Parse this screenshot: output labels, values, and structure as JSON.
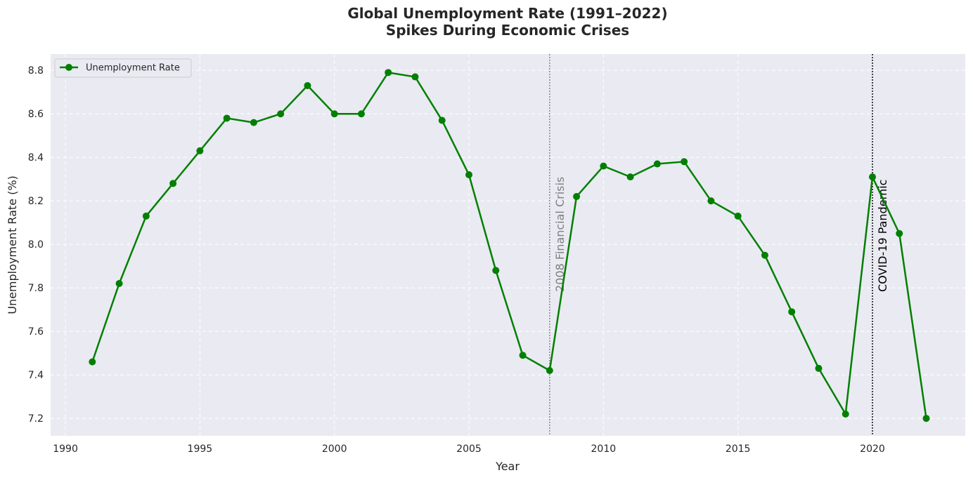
{
  "chart_data": {
    "type": "line",
    "title": "Global Unemployment Rate (1991–2022)",
    "subtitle": "Spikes During Economic Crises",
    "xlabel": "Year",
    "ylabel": "Unemployment Rate (%)",
    "xlim": [
      1989.45,
      1993.45
    ],
    "ylim": [
      7.12,
      8.875
    ],
    "x_ticks": [
      1990,
      1995,
      2000,
      2005,
      2010,
      2015,
      2020
    ],
    "y_ticks": [
      7.2,
      7.4,
      7.6,
      7.8,
      8.0,
      8.2,
      8.4,
      8.6,
      8.8
    ],
    "y_tick_labels": [
      "7.2",
      "7.4",
      "7.6",
      "7.8",
      "8.0",
      "8.2",
      "8.4",
      "8.6",
      "8.8"
    ],
    "grid": true,
    "legend_position": "top-left",
    "series": [
      {
        "name": "Unemployment Rate",
        "color": "#008000",
        "x": [
          1991,
          1992,
          1993,
          1994,
          1995,
          1996,
          1997,
          1998,
          1999,
          2000,
          2001,
          2002,
          2003,
          2004,
          2005,
          2006,
          2007,
          2008,
          2009,
          2010,
          2011,
          2012,
          2013,
          2014,
          2015,
          2016,
          2017,
          2018,
          2019,
          2020,
          2021,
          2022
        ],
        "values": [
          7.46,
          7.82,
          8.13,
          8.28,
          8.43,
          8.58,
          8.56,
          8.6,
          8.73,
          8.6,
          8.6,
          8.79,
          8.77,
          8.57,
          8.32,
          7.88,
          7.49,
          7.42,
          8.22,
          8.36,
          8.31,
          8.37,
          8.38,
          8.2,
          8.13,
          7.95,
          7.69,
          7.43,
          7.22,
          8.31,
          8.05,
          7.2
        ]
      }
    ],
    "annotations": [
      {
        "x": 2008,
        "label": "2008 Financial Crisis",
        "color": "#808080"
      },
      {
        "x": 2020,
        "label": "COVID-19 Pandemic",
        "color": "#000000"
      }
    ]
  },
  "colors": {
    "plot_background": "#eaeaf2",
    "grid": "#ffffff",
    "text": "#262626"
  }
}
